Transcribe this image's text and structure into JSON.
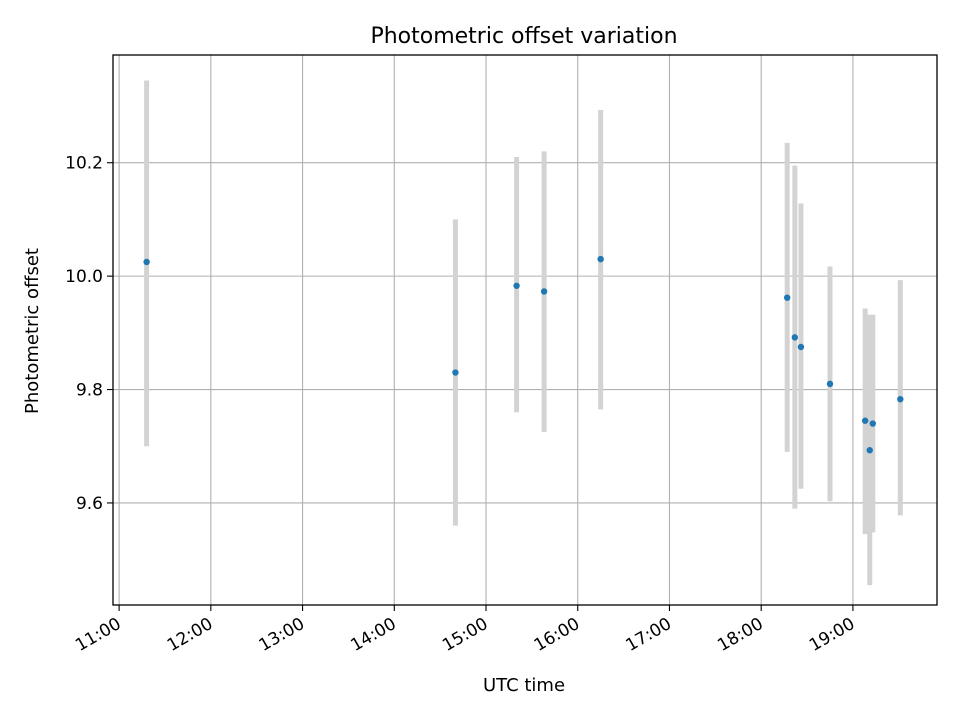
{
  "chart_data": {
    "type": "scatter",
    "title": "Photometric offset variation",
    "xlabel": "UTC time",
    "ylabel": "Photometric offset",
    "x_ticks": [
      "11:00",
      "12:00",
      "13:00",
      "14:00",
      "15:00",
      "16:00",
      "17:00",
      "18:00",
      "19:00"
    ],
    "y_ticks": [
      "9.6",
      "9.8",
      "10.0",
      "10.2"
    ],
    "xlim": [
      "10:56",
      "19:55"
    ],
    "ylim": [
      9.42,
      10.39
    ],
    "grid": true,
    "series": [
      {
        "marker_color": "#1f77b4",
        "errorbar_color": "#d3d3d3",
        "points": [
          {
            "x": "11:18",
            "y": 10.025,
            "lower": 9.7,
            "upper": 10.345
          },
          {
            "x": "14:40",
            "y": 9.83,
            "lower": 9.56,
            "upper": 10.1
          },
          {
            "x": "15:20",
            "y": 9.983,
            "lower": 9.76,
            "upper": 10.21
          },
          {
            "x": "15:38",
            "y": 9.973,
            "lower": 9.725,
            "upper": 10.22
          },
          {
            "x": "16:15",
            "y": 10.03,
            "lower": 9.765,
            "upper": 10.293
          },
          {
            "x": "18:17",
            "y": 9.962,
            "lower": 9.69,
            "upper": 10.235
          },
          {
            "x": "18:22",
            "y": 9.892,
            "lower": 9.59,
            "upper": 10.195
          },
          {
            "x": "18:26",
            "y": 9.875,
            "lower": 9.625,
            "upper": 10.128
          },
          {
            "x": "18:45",
            "y": 9.81,
            "lower": 9.603,
            "upper": 10.017
          },
          {
            "x": "19:08",
            "y": 9.745,
            "lower": 9.545,
            "upper": 9.943
          },
          {
            "x": "19:11",
            "y": 9.693,
            "lower": 9.455,
            "upper": 9.932
          },
          {
            "x": "19:13",
            "y": 9.74,
            "lower": 9.548,
            "upper": 9.932
          },
          {
            "x": "19:31",
            "y": 9.783,
            "lower": 9.578,
            "upper": 9.993
          }
        ]
      }
    ]
  }
}
